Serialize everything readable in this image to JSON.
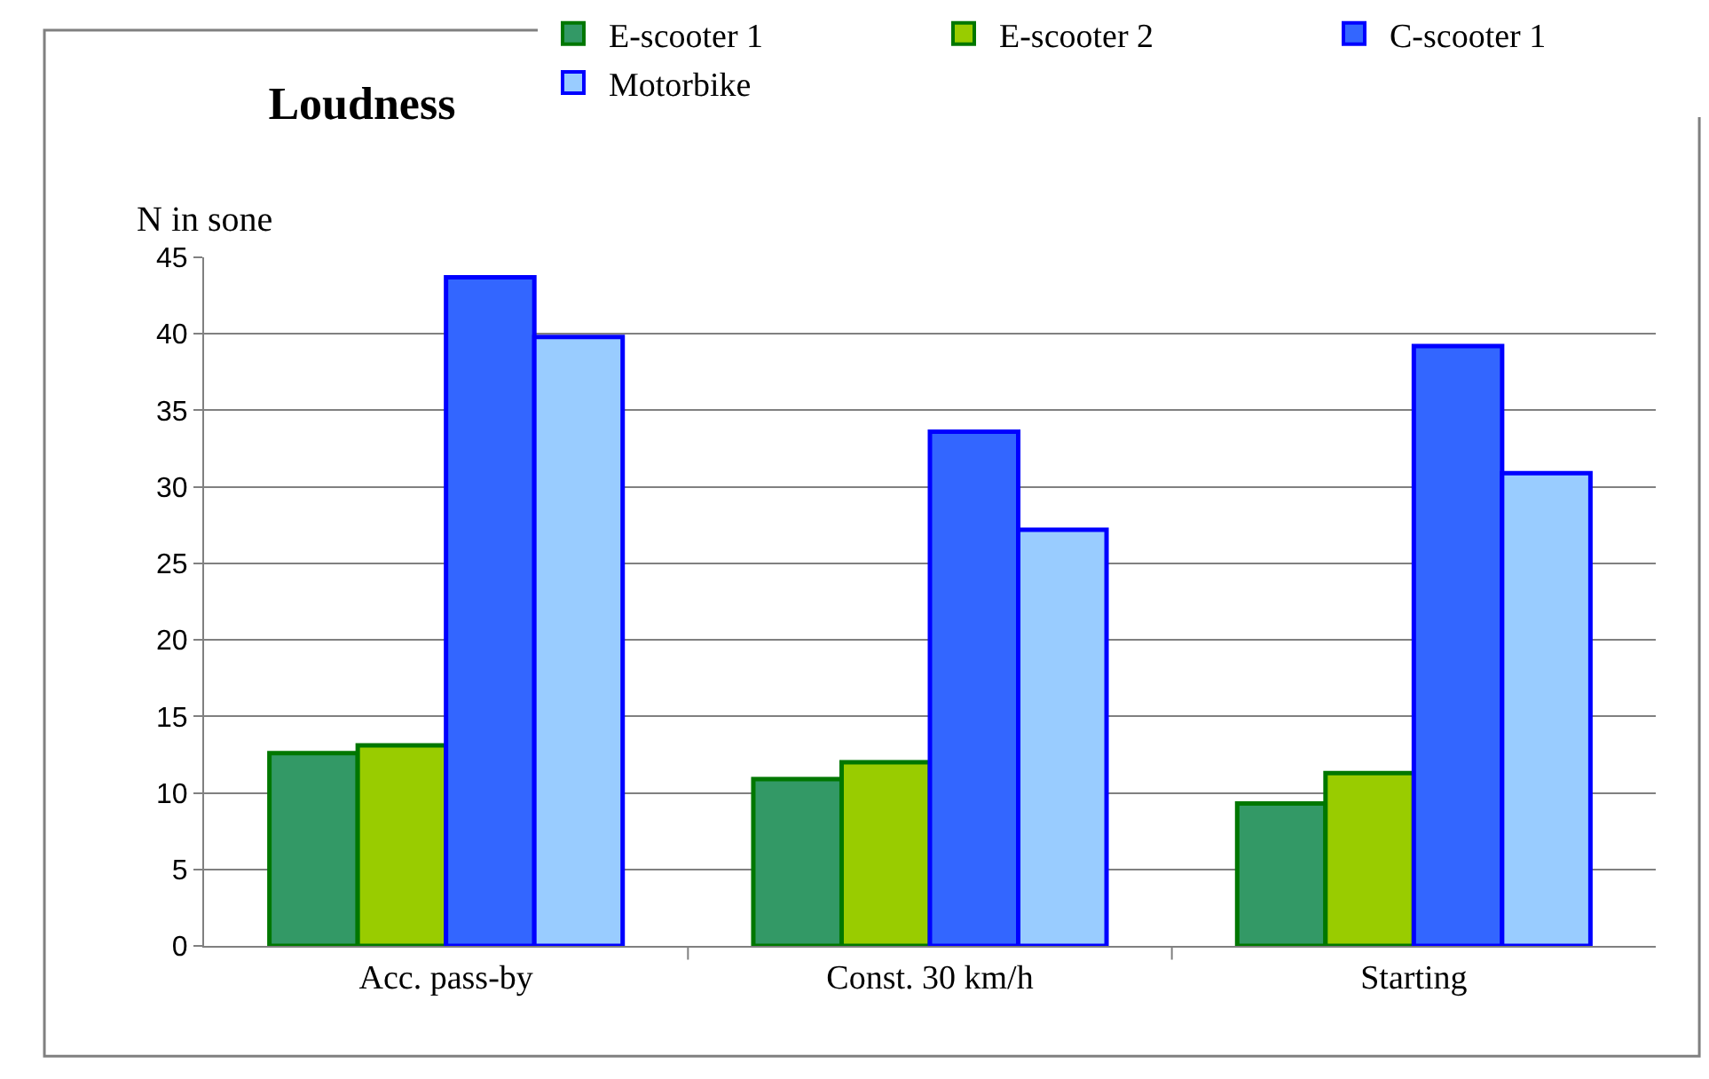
{
  "chart_data": {
    "type": "bar",
    "title": "Loudness",
    "ylabel": "N in sone",
    "categories": [
      "Acc. pass-by",
      "Const. 30 km/h",
      "Starting"
    ],
    "series": [
      {
        "name": "E-scooter 1",
        "color": "#339966",
        "values": [
          12.6,
          10.9,
          9.3
        ]
      },
      {
        "name": "E-scooter 2",
        "color": "#99cc00",
        "values": [
          13.1,
          12.0,
          11.3
        ]
      },
      {
        "name": "C-scooter 1",
        "color": "#3366ff",
        "values": [
          43.7,
          33.6,
          39.2
        ]
      },
      {
        "name": "Motorbike",
        "color": "#99ccff",
        "values": [
          39.8,
          27.2,
          30.9
        ]
      }
    ],
    "ylim": [
      0,
      45
    ],
    "yticks": [
      0,
      5,
      10,
      15,
      20,
      25,
      30,
      35,
      40,
      45
    ],
    "grid": "y",
    "legend": "top right"
  }
}
